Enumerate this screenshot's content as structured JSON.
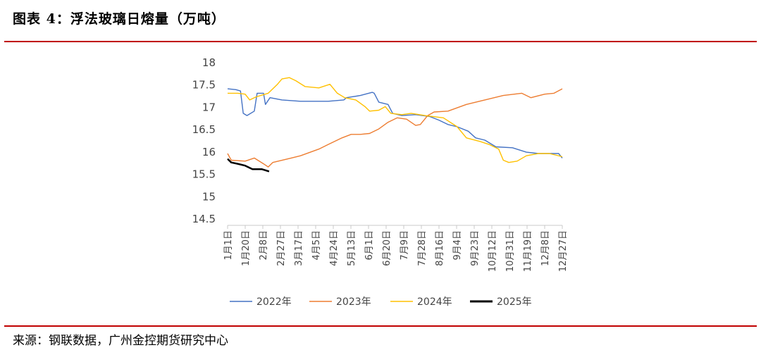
{
  "header": {
    "title": "图表 4：浮法玻璃日熔量（万吨）"
  },
  "footer": {
    "source": "来源：钢联数据，广州金控期货研究中心"
  },
  "colors": {
    "rule": "#c00000",
    "s2022": "#4472c4",
    "s2023": "#ed7d31",
    "s2024": "#ffc000",
    "s2025": "#000000"
  },
  "chart_data": {
    "type": "line",
    "title": "",
    "ylim": [
      14.5,
      18
    ],
    "yticks": [
      "18",
      "17.5",
      "17",
      "16.5",
      "16",
      "15.5",
      "15",
      "14.5"
    ],
    "ytick_values": [
      18,
      17.5,
      17,
      16.5,
      16,
      15.5,
      15,
      14.5
    ],
    "xticks": [
      "1月1日",
      "1月20日",
      "2月8日",
      "2月27日",
      "3月17日",
      "4月5日",
      "4月24日",
      "5月13日",
      "6月1日",
      "6月20日",
      "7月9日",
      "7月28日",
      "8月16日",
      "9月4日",
      "9月23日",
      "10月12日",
      "10月31日",
      "11月19日",
      "12月8日",
      "12月27日"
    ],
    "x_unit": "day of year (1 = 1月1日)",
    "legend_position": "bottom",
    "series": [
      {
        "name": "2022年",
        "color": "#4472c4",
        "points": [
          [
            1,
            17.4
          ],
          [
            10,
            17.38
          ],
          [
            15,
            17.35
          ],
          [
            18,
            16.85
          ],
          [
            22,
            16.8
          ],
          [
            30,
            16.9
          ],
          [
            33,
            17.3
          ],
          [
            40,
            17.3
          ],
          [
            42,
            17.05
          ],
          [
            47,
            17.2
          ],
          [
            60,
            17.15
          ],
          [
            80,
            17.12
          ],
          [
            110,
            17.12
          ],
          [
            127,
            17.15
          ],
          [
            130,
            17.2
          ],
          [
            145,
            17.25
          ],
          [
            158,
            17.32
          ],
          [
            160,
            17.3
          ],
          [
            165,
            17.1
          ],
          [
            175,
            17.05
          ],
          [
            180,
            16.85
          ],
          [
            190,
            16.8
          ],
          [
            205,
            16.82
          ],
          [
            220,
            16.78
          ],
          [
            230,
            16.7
          ],
          [
            240,
            16.6
          ],
          [
            250,
            16.55
          ],
          [
            262,
            16.45
          ],
          [
            270,
            16.3
          ],
          [
            280,
            16.25
          ],
          [
            292,
            16.1
          ],
          [
            310,
            16.08
          ],
          [
            325,
            15.98
          ],
          [
            338,
            15.95
          ],
          [
            360,
            15.95
          ],
          [
            364,
            15.85
          ]
        ]
      },
      {
        "name": "2023年",
        "color": "#ed7d31",
        "points": [
          [
            1,
            15.95
          ],
          [
            5,
            15.8
          ],
          [
            20,
            15.78
          ],
          [
            30,
            15.85
          ],
          [
            40,
            15.72
          ],
          [
            45,
            15.65
          ],
          [
            50,
            15.75
          ],
          [
            70,
            15.85
          ],
          [
            80,
            15.9
          ],
          [
            100,
            16.05
          ],
          [
            110,
            16.15
          ],
          [
            125,
            16.3
          ],
          [
            135,
            16.38
          ],
          [
            145,
            16.38
          ],
          [
            155,
            16.4
          ],
          [
            165,
            16.5
          ],
          [
            175,
            16.65
          ],
          [
            185,
            16.75
          ],
          [
            195,
            16.72
          ],
          [
            205,
            16.58
          ],
          [
            210,
            16.6
          ],
          [
            218,
            16.8
          ],
          [
            225,
            16.88
          ],
          [
            240,
            16.9
          ],
          [
            260,
            17.05
          ],
          [
            280,
            17.15
          ],
          [
            300,
            17.25
          ],
          [
            320,
            17.3
          ],
          [
            330,
            17.2
          ],
          [
            345,
            17.28
          ],
          [
            355,
            17.3
          ],
          [
            364,
            17.4
          ]
        ]
      },
      {
        "name": "2024年",
        "color": "#ffc000",
        "points": [
          [
            1,
            17.3
          ],
          [
            12,
            17.3
          ],
          [
            20,
            17.28
          ],
          [
            25,
            17.15
          ],
          [
            32,
            17.22
          ],
          [
            45,
            17.3
          ],
          [
            55,
            17.5
          ],
          [
            60,
            17.62
          ],
          [
            68,
            17.65
          ],
          [
            75,
            17.58
          ],
          [
            85,
            17.45
          ],
          [
            100,
            17.42
          ],
          [
            112,
            17.5
          ],
          [
            120,
            17.3
          ],
          [
            128,
            17.2
          ],
          [
            140,
            17.15
          ],
          [
            150,
            17.0
          ],
          [
            155,
            16.9
          ],
          [
            165,
            16.92
          ],
          [
            172,
            17.0
          ],
          [
            178,
            16.85
          ],
          [
            190,
            16.82
          ],
          [
            200,
            16.85
          ],
          [
            215,
            16.8
          ],
          [
            235,
            16.75
          ],
          [
            250,
            16.55
          ],
          [
            260,
            16.3
          ],
          [
            275,
            16.22
          ],
          [
            285,
            16.15
          ],
          [
            295,
            16.05
          ],
          [
            300,
            15.8
          ],
          [
            306,
            15.75
          ],
          [
            315,
            15.78
          ],
          [
            325,
            15.9
          ],
          [
            338,
            15.95
          ],
          [
            350,
            15.95
          ],
          [
            364,
            15.88
          ]
        ]
      },
      {
        "name": "2025年",
        "color": "#000000",
        "points": [
          [
            1,
            15.83
          ],
          [
            5,
            15.75
          ],
          [
            12,
            15.72
          ],
          [
            20,
            15.68
          ],
          [
            28,
            15.6
          ],
          [
            38,
            15.6
          ],
          [
            46,
            15.55
          ]
        ]
      }
    ]
  }
}
